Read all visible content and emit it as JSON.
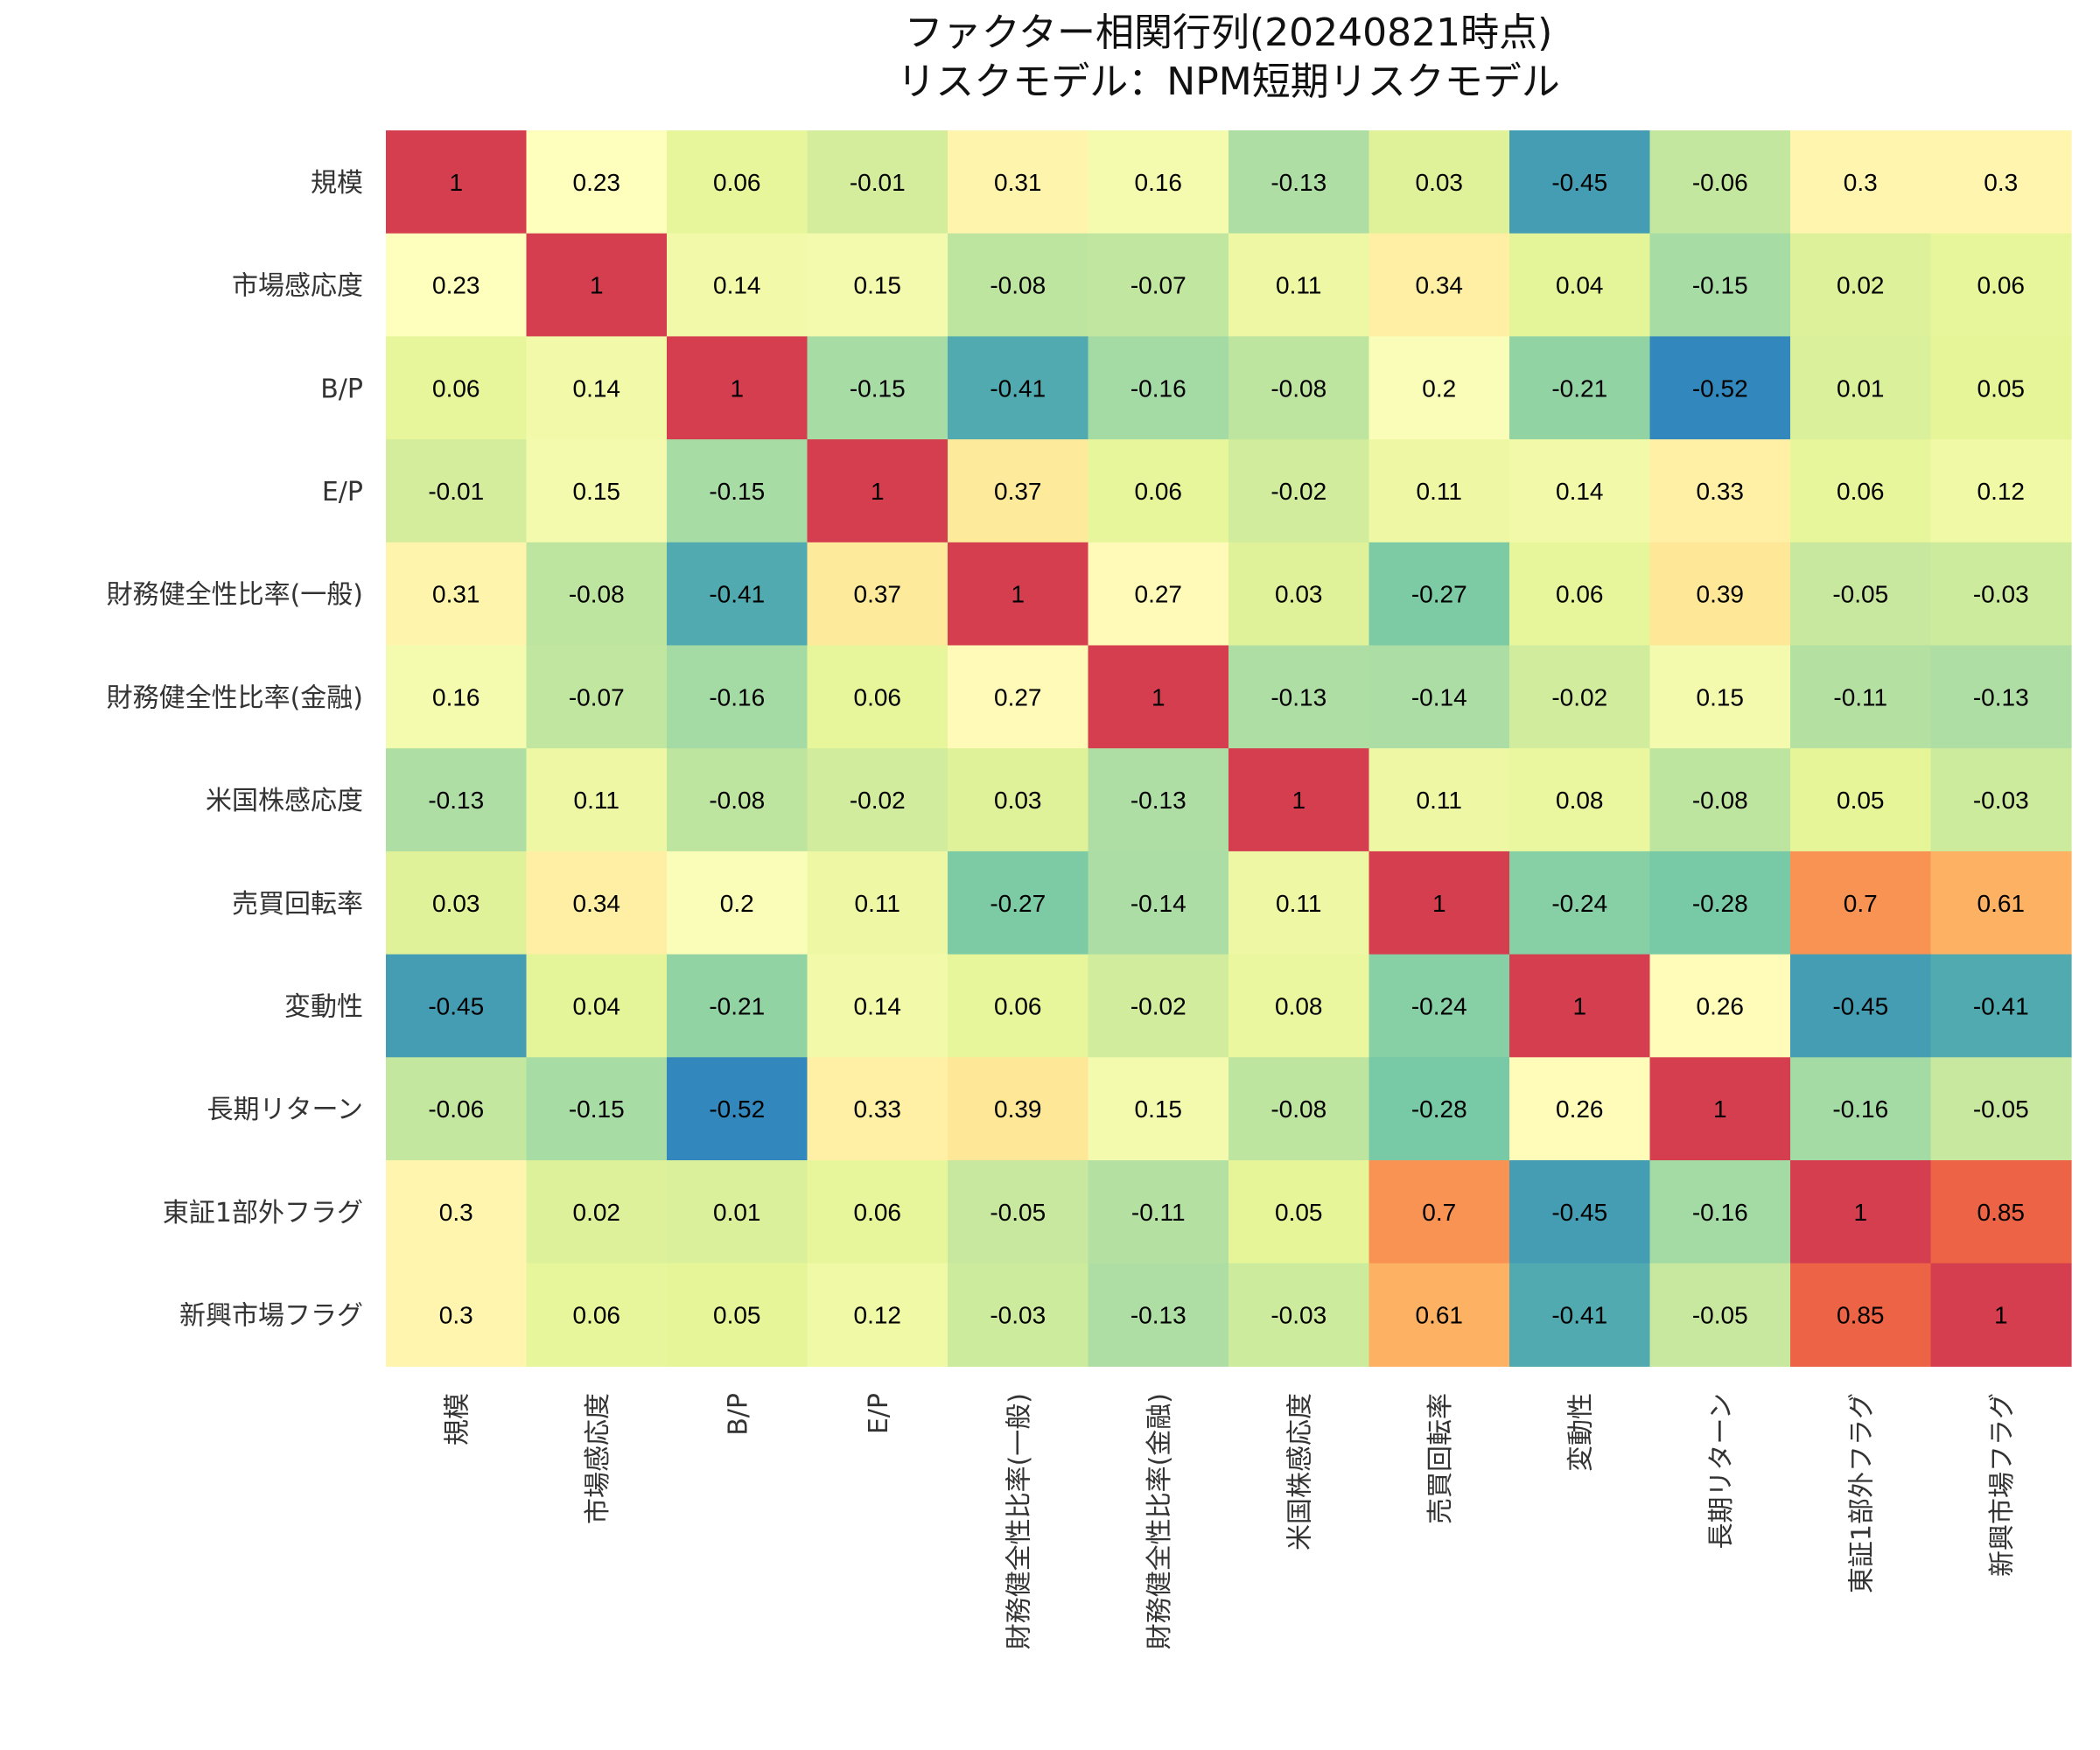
{
  "chart_data": {
    "type": "heatmap",
    "title": "ファクター相関行列(20240821時点)",
    "subtitle": "リスクモデル：NPM短期リスクモデル",
    "colormap": "Spectral_r",
    "vmin": -0.52,
    "vmax": 1,
    "color_stops": [
      "#3288bd",
      "#66c2a5",
      "#abdda4",
      "#e6f598",
      "#ffffbf",
      "#fee08b",
      "#fdae61",
      "#f46d43",
      "#d53e4f"
    ],
    "labels": [
      "規模",
      "市場感応度",
      "B/P",
      "E/P",
      "財務健全性比率(一般)",
      "財務健全性比率(金融)",
      "米国株感応度",
      "売買回転率",
      "変動性",
      "長期リターン",
      "東証1部外フラグ",
      "新興市場フラグ"
    ],
    "matrix": [
      [
        1,
        0.23,
        0.06,
        -0.01,
        0.31,
        0.16,
        -0.13,
        0.03,
        -0.45,
        -0.06,
        0.3,
        0.3
      ],
      [
        0.23,
        1,
        0.14,
        0.15,
        -0.08,
        -0.07,
        0.11,
        0.34,
        0.04,
        -0.15,
        0.02,
        0.06
      ],
      [
        0.06,
        0.14,
        1,
        -0.15,
        -0.41,
        -0.16,
        -0.08,
        0.2,
        -0.21,
        -0.52,
        0.01,
        0.05
      ],
      [
        -0.01,
        0.15,
        -0.15,
        1,
        0.37,
        0.06,
        -0.02,
        0.11,
        0.14,
        0.33,
        0.06,
        0.12
      ],
      [
        0.31,
        -0.08,
        -0.41,
        0.37,
        1,
        0.27,
        0.03,
        -0.27,
        0.06,
        0.39,
        -0.05,
        -0.03
      ],
      [
        0.16,
        -0.07,
        -0.16,
        0.06,
        0.27,
        1,
        -0.13,
        -0.14,
        -0.02,
        0.15,
        -0.11,
        -0.13
      ],
      [
        -0.13,
        0.11,
        -0.08,
        -0.02,
        0.03,
        -0.13,
        1,
        0.11,
        0.08,
        -0.08,
        0.05,
        -0.03
      ],
      [
        0.03,
        0.34,
        0.2,
        0.11,
        -0.27,
        -0.14,
        0.11,
        1,
        -0.24,
        -0.28,
        0.7,
        0.61
      ],
      [
        -0.45,
        0.04,
        -0.21,
        0.14,
        0.06,
        -0.02,
        0.08,
        -0.24,
        1,
        0.26,
        -0.45,
        -0.41
      ],
      [
        -0.06,
        -0.15,
        -0.52,
        0.33,
        0.39,
        0.15,
        -0.08,
        -0.28,
        0.26,
        1,
        -0.16,
        -0.05
      ],
      [
        0.3,
        0.02,
        0.01,
        0.06,
        -0.05,
        -0.11,
        0.05,
        0.7,
        -0.45,
        -0.16,
        1,
        0.85
      ],
      [
        0.3,
        0.06,
        0.05,
        0.12,
        -0.03,
        -0.13,
        -0.03,
        0.61,
        -0.41,
        -0.05,
        0.85,
        1
      ]
    ]
  }
}
